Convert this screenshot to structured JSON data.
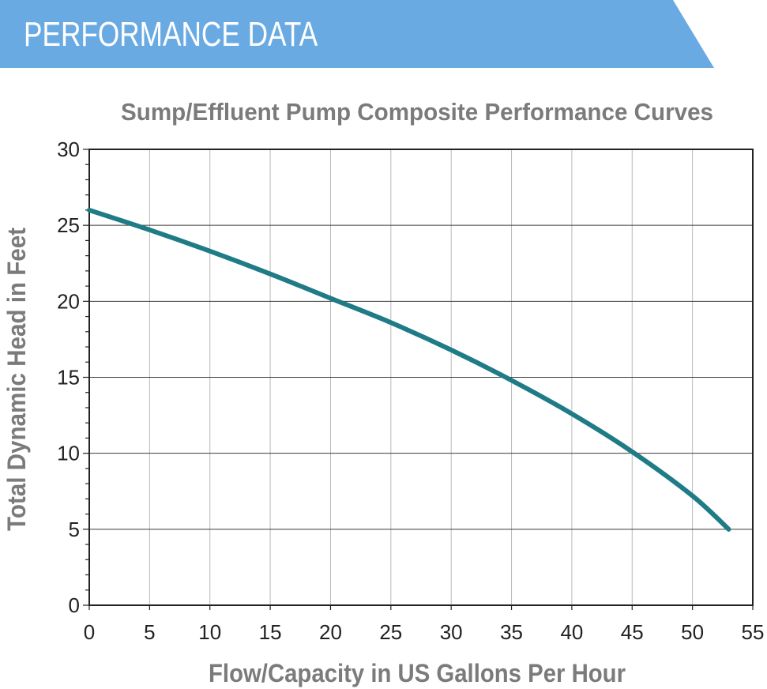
{
  "banner": {
    "title": "PERFORMANCE DATA",
    "color": "#6aaae3"
  },
  "chart_data": {
    "type": "line",
    "title": "Sump/Effluent Pump Composite Performance Curves",
    "xlabel": "Flow/Capacity in US Gallons Per Hour",
    "ylabel": "Total Dynamic Head in Feet",
    "xlim": [
      0,
      55
    ],
    "ylim": [
      0,
      30
    ],
    "xticks": [
      0,
      5,
      10,
      15,
      20,
      25,
      30,
      35,
      40,
      45,
      50,
      55
    ],
    "yticks": [
      0,
      5,
      10,
      15,
      20,
      25,
      30
    ],
    "x_minor_grid_step": 5,
    "y_major_grid_step": 5,
    "grid": true,
    "line_color": "#1f7b86",
    "text_color": "#7b7b7b",
    "series": [
      {
        "x": [
          0,
          5,
          10,
          15,
          20,
          25,
          30,
          35,
          40,
          45,
          50,
          53
        ],
        "y": [
          26.0,
          24.7,
          23.3,
          21.8,
          20.2,
          18.6,
          16.8,
          14.8,
          12.6,
          10.1,
          7.2,
          5.0
        ]
      }
    ]
  }
}
